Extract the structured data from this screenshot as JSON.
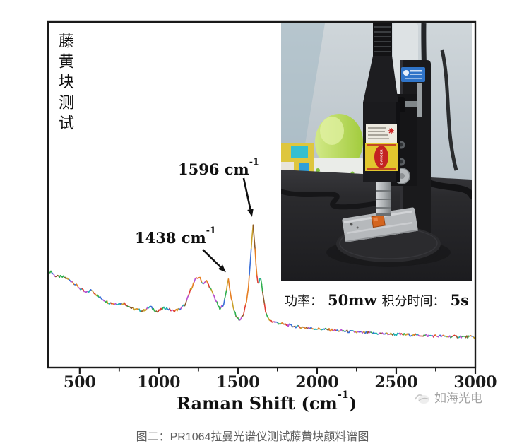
{
  "figure_label": {
    "text": "藤黄块测试"
  },
  "chart_data": {
    "type": "line",
    "title": "",
    "xlabel_pre": "Raman Shift (cm",
    "xlabel_sup": "-1",
    "xlabel_post": ")",
    "ylabel": "",
    "xlim": [
      300,
      3000
    ],
    "x_ticks_major": [
      500,
      1000,
      1500,
      2000,
      2500,
      3000
    ],
    "x_ticks_minor": [
      750,
      1250,
      1750,
      2250,
      2750
    ],
    "grid": false,
    "axis_color": "#1a1a1a",
    "line_palette": [
      "#e67e22",
      "#2eaf4d",
      "#3a6fd8",
      "#e03c31",
      "#b84fd0",
      "#1fb3b3",
      "#c8a02a",
      "#8d5a2b"
    ],
    "series": [
      {
        "name": "藤黄块测试",
        "points": [
          [
            300,
            26.5
          ],
          [
            315,
            28.0
          ],
          [
            332,
            27.0
          ],
          [
            350,
            26.3
          ],
          [
            400,
            26.1
          ],
          [
            450,
            24.9
          ],
          [
            500,
            22.9
          ],
          [
            540,
            21.6
          ],
          [
            575,
            22.4
          ],
          [
            620,
            20.4
          ],
          [
            680,
            18.8
          ],
          [
            720,
            18.4
          ],
          [
            780,
            18.6
          ],
          [
            830,
            17.1
          ],
          [
            900,
            16.3
          ],
          [
            945,
            17.6
          ],
          [
            990,
            16.1
          ],
          [
            1040,
            17.3
          ],
          [
            1090,
            16.3
          ],
          [
            1135,
            16.9
          ],
          [
            1170,
            18.4
          ],
          [
            1200,
            22.4
          ],
          [
            1232,
            25.5
          ],
          [
            1255,
            26.1
          ],
          [
            1278,
            24.3
          ],
          [
            1302,
            24.9
          ],
          [
            1325,
            22.9
          ],
          [
            1355,
            20.0
          ],
          [
            1385,
            16.7
          ],
          [
            1412,
            18.6
          ],
          [
            1426,
            21.8
          ],
          [
            1438,
            26.1
          ],
          [
            1452,
            21.6
          ],
          [
            1470,
            17.3
          ],
          [
            1490,
            14.7
          ],
          [
            1512,
            13.7
          ],
          [
            1532,
            14.9
          ],
          [
            1552,
            18.4
          ],
          [
            1568,
            24.0
          ],
          [
            1580,
            31.5
          ],
          [
            1590,
            38.5
          ],
          [
            1596,
            40.8
          ],
          [
            1604,
            37.0
          ],
          [
            1612,
            31.0
          ],
          [
            1621,
            25.8
          ],
          [
            1628,
            23.9
          ],
          [
            1637,
            25.4
          ],
          [
            1644,
            25.7
          ],
          [
            1654,
            22.8
          ],
          [
            1664,
            19.2
          ],
          [
            1677,
            15.5
          ],
          [
            1694,
            13.9
          ],
          [
            1716,
            13.3
          ],
          [
            1750,
            12.9
          ],
          [
            1800,
            12.4
          ],
          [
            1870,
            11.8
          ],
          [
            1950,
            11.4
          ],
          [
            2050,
            11.0
          ],
          [
            2150,
            10.6
          ],
          [
            2300,
            10.0
          ],
          [
            2450,
            9.7
          ],
          [
            2600,
            9.4
          ],
          [
            2800,
            9.0
          ],
          [
            3000,
            8.8
          ]
        ]
      }
    ],
    "peaks": [
      {
        "label_pre": "1438 cm",
        "label_sup": "-1",
        "x": 1438,
        "arrow_from": [
          1277,
          34.1
        ],
        "arrow_to": [
          1424,
          27.5
        ]
      },
      {
        "label_pre": "1596 cm",
        "label_sup": "-1",
        "x": 1596,
        "arrow_from": [
          1536,
          54.7
        ],
        "arrow_to": [
          1589,
          43.5
        ]
      }
    ]
  },
  "acquisition": {
    "power_label": "功率：",
    "power_value": "50mw",
    "integration_label": "积分时间：",
    "integration_value": "5s"
  },
  "inset_photo": {
    "danger_label": "DANGER"
  },
  "watermark": {
    "text": "如海光电"
  },
  "caption": {
    "text": "图二：PR1064拉曼光谱仪测试藤黄块颜料谱图"
  }
}
